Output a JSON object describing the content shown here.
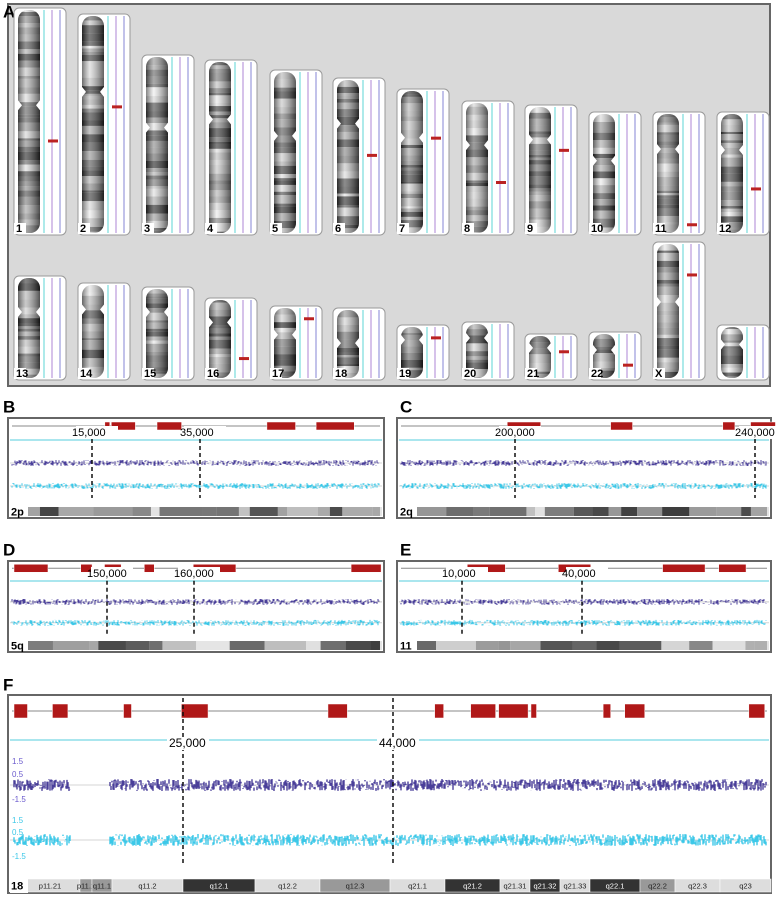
{
  "panel_a": {
    "letter": "A",
    "chromosomes": [
      "1",
      "2",
      "3",
      "4",
      "5",
      "6",
      "7",
      "8",
      "9",
      "10",
      "11",
      "12",
      "13",
      "14",
      "15",
      "16",
      "17",
      "18",
      "19",
      "20",
      "21",
      "22",
      "X"
    ]
  },
  "panels": [
    {
      "letter": "B",
      "label": "2p",
      "positions": [
        "15,000",
        "35,000"
      ]
    },
    {
      "letter": "C",
      "label": "2q",
      "positions": [
        "200,000",
        "240,000"
      ]
    },
    {
      "letter": "D",
      "label": "5q",
      "positions": [
        "150,000",
        "160,000"
      ]
    },
    {
      "letter": "E",
      "label": "11",
      "positions": [
        "10,000",
        "40,000"
      ]
    },
    {
      "letter": "F",
      "label": "18",
      "positions": [
        "25,000",
        "44,000"
      ],
      "axis_labels": [
        "1.5",
        "0.5",
        "-1.5",
        "1.5",
        "0.5",
        "-1.5"
      ],
      "bands": [
        "p11.21",
        "p11.1",
        "q11.1",
        "q11.2",
        "q12.1",
        "q12.2",
        "q12.3",
        "q21.1",
        "q21.2",
        "q21.31",
        "q21.32",
        "q21.33",
        "q22.1",
        "q22.2",
        "q22.3",
        "q23"
      ]
    }
  ]
}
